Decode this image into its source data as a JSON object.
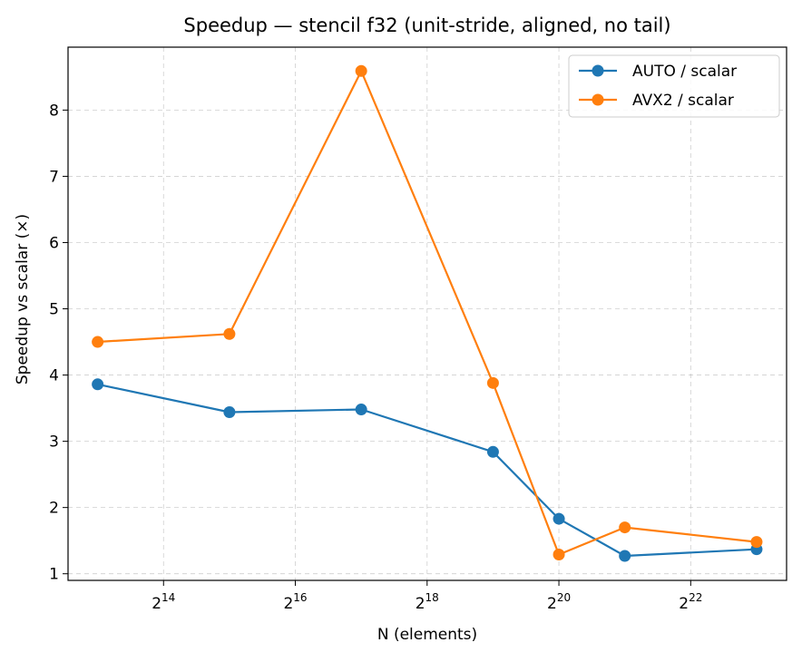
{
  "chart_data": {
    "type": "line",
    "title": "Speedup — stencil f32 (unit-stride, aligned, no tail)",
    "xlabel": "N (elements)",
    "ylabel": "Speedup vs scalar (×)",
    "x_scale": "log2",
    "x": [
      8192,
      32768,
      131072,
      524288,
      1048576,
      2097152,
      8388608
    ],
    "xlim": [
      6000,
      11500000
    ],
    "ylim": [
      0.9,
      8.95
    ],
    "x_ticks": [
      {
        "value": 16384,
        "base": "2",
        "exp": "14"
      },
      {
        "value": 65536,
        "base": "2",
        "exp": "16"
      },
      {
        "value": 262144,
        "base": "2",
        "exp": "18"
      },
      {
        "value": 1048576,
        "base": "2",
        "exp": "20"
      },
      {
        "value": 4194304,
        "base": "2",
        "exp": "22"
      }
    ],
    "y_ticks": [
      {
        "value": 1,
        "label": "1"
      },
      {
        "value": 2,
        "label": "2"
      },
      {
        "value": 3,
        "label": "3"
      },
      {
        "value": 4,
        "label": "4"
      },
      {
        "value": 5,
        "label": "5"
      },
      {
        "value": 6,
        "label": "6"
      },
      {
        "value": 7,
        "label": "7"
      },
      {
        "value": 8,
        "label": "8"
      }
    ],
    "grid": true,
    "legend_position": "top-right",
    "series": [
      {
        "name": "AUTO / scalar",
        "color": "#1f77b4",
        "values": [
          3.86,
          3.44,
          3.48,
          2.84,
          1.83,
          1.27,
          1.37
        ]
      },
      {
        "name": "AVX2 / scalar",
        "color": "#ff7f0e",
        "values": [
          4.5,
          4.62,
          8.59,
          3.88,
          1.29,
          1.7,
          1.48
        ]
      }
    ]
  }
}
